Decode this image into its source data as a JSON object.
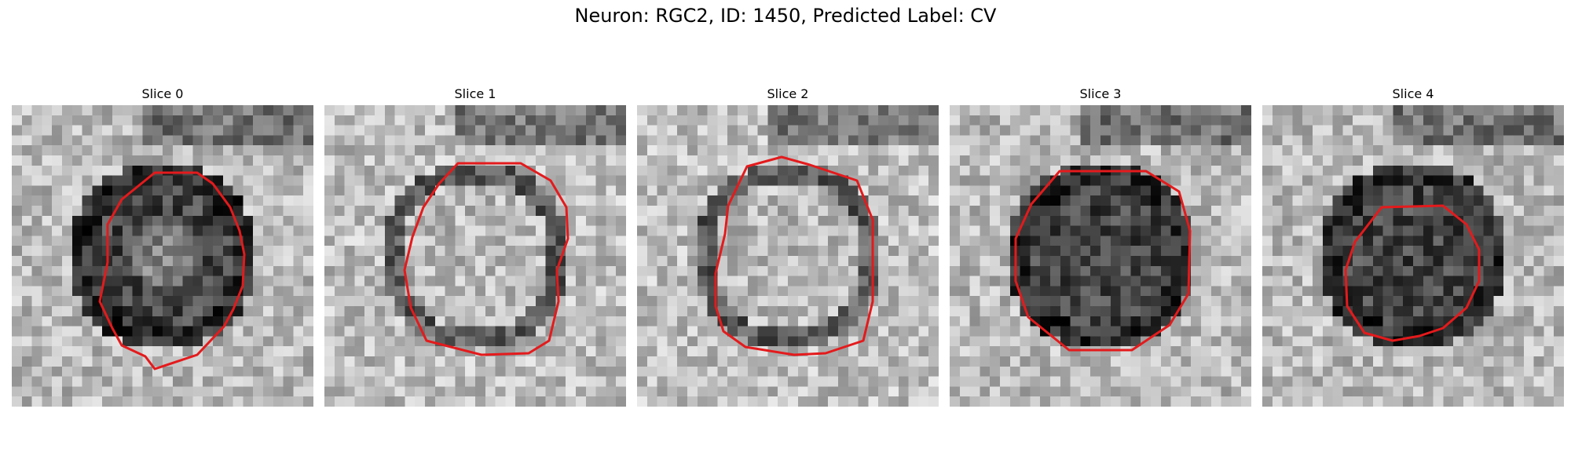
{
  "figure": {
    "title": "Neuron: RGC2, ID: 1450, Predicted Label: CV"
  },
  "slices": [
    {
      "label": "Slice 0",
      "cell_tone": "dark",
      "overlay_color": "#e41a1c"
    },
    {
      "label": "Slice 1",
      "cell_tone": "light",
      "overlay_color": "#e41a1c"
    },
    {
      "label": "Slice 2",
      "cell_tone": "light",
      "overlay_color": "#e41a1c"
    },
    {
      "label": "Slice 3",
      "cell_tone": "dark",
      "overlay_color": "#e41a1c"
    },
    {
      "label": "Slice 4",
      "cell_tone": "dark",
      "overlay_color": "#e41a1c"
    }
  ]
}
